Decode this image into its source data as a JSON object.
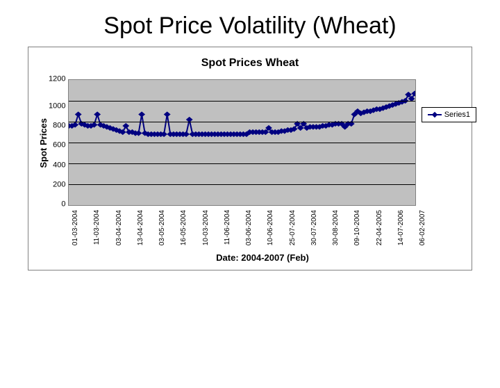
{
  "slide": {
    "title": "Spot Price Volatility (Wheat)"
  },
  "chart": {
    "type": "line",
    "title": "Spot Prices Wheat",
    "y_axis_label": "Spot Prices",
    "x_axis_label": "Date: 2004-2007 (Feb)",
    "ylim": [
      0,
      1200
    ],
    "ytick_step": 200,
    "y_ticks": [
      1200,
      1000,
      800,
      600,
      400,
      200,
      0
    ],
    "x_tick_labels": [
      "01-03-2004",
      "11-03-2004",
      "03-04-2004",
      "13-04-2004",
      "03-05-2004",
      "16-05-2004",
      "10-03-2004",
      "11-06-2004",
      "03-06-2004",
      "10-06-2004",
      "25-07-2004",
      "30-07-2004",
      "30-08-2004",
      "09-10-2004",
      "22-04-2005",
      "14-07-2006",
      "06-02-2007"
    ],
    "series": {
      "name": "Series1",
      "color": "#000080",
      "marker": "diamond",
      "marker_size": 5,
      "line_width": 2,
      "values": [
        760,
        760,
        770,
        870,
        780,
        770,
        760,
        760,
        770,
        870,
        770,
        760,
        750,
        740,
        730,
        720,
        710,
        700,
        760,
        700,
        700,
        690,
        690,
        870,
        690,
        680,
        680,
        680,
        680,
        680,
        680,
        870,
        680,
        680,
        680,
        680,
        680,
        680,
        820,
        680,
        680,
        680,
        680,
        680,
        680,
        680,
        680,
        680,
        680,
        680,
        680,
        680,
        680,
        680,
        680,
        680,
        680,
        700,
        700,
        700,
        700,
        700,
        700,
        740,
        700,
        700,
        700,
        710,
        710,
        720,
        720,
        730,
        780,
        740,
        780,
        740,
        750,
        750,
        750,
        750,
        760,
        760,
        770,
        770,
        780,
        780,
        780,
        750,
        780,
        780,
        870,
        900,
        880,
        890,
        900,
        900,
        910,
        920,
        920,
        930,
        940,
        950,
        960,
        970,
        980,
        990,
        1000,
        1060,
        1020,
        1070
      ]
    },
    "background_color": "#ffffff",
    "plot_background_color": "#c0c0c0",
    "grid_color": "#000000",
    "border_color": "#808080",
    "title_fontsize": 16,
    "label_fontsize": 13,
    "tick_fontsize": 11,
    "x_tick_fontsize": 10
  }
}
